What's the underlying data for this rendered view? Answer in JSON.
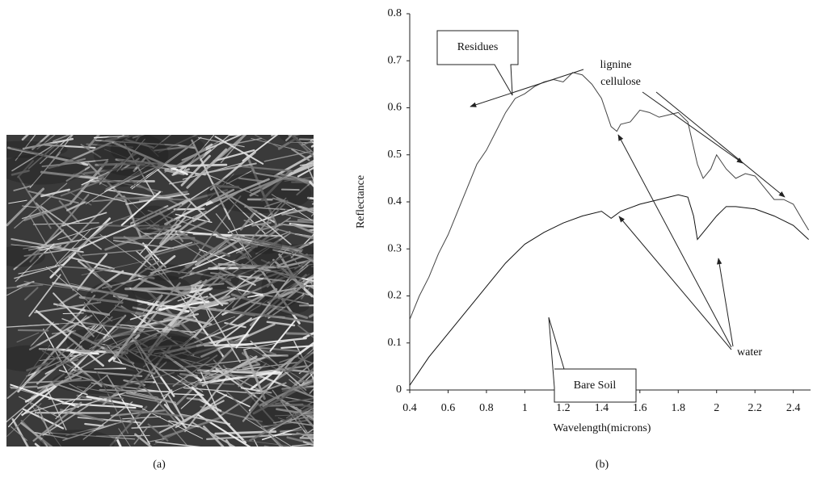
{
  "chart_data": {
    "type": "line",
    "panel_labels": [
      "(a)",
      "(b)"
    ],
    "xlabel": "Wavelength(microns)",
    "ylabel": "Reflectance",
    "xlim": [
      0.4,
      2.49
    ],
    "ylim": [
      0,
      0.8
    ],
    "xticks": [
      0.4,
      0.6,
      0.8,
      1,
      1.2,
      1.4,
      1.6,
      1.8,
      2,
      2.2,
      2.4
    ],
    "yticks": [
      0,
      0.1,
      0.2,
      0.3,
      0.4,
      0.5,
      0.6,
      0.7,
      0.8
    ],
    "grid": false,
    "annotations": [
      "lignine",
      "cellulose",
      "water"
    ],
    "series": [
      {
        "name": "Residues",
        "color": "#444444",
        "x": [
          0.4,
          0.45,
          0.5,
          0.55,
          0.6,
          0.65,
          0.7,
          0.75,
          0.8,
          0.85,
          0.9,
          0.95,
          1.0,
          1.05,
          1.1,
          1.15,
          1.2,
          1.25,
          1.3,
          1.35,
          1.4,
          1.45,
          1.48,
          1.5,
          1.55,
          1.6,
          1.65,
          1.7,
          1.75,
          1.8,
          1.85,
          1.9,
          1.93,
          1.97,
          2.0,
          2.05,
          2.1,
          2.15,
          2.2,
          2.25,
          2.3,
          2.35,
          2.4,
          2.45,
          2.48
        ],
        "values": [
          0.15,
          0.2,
          0.24,
          0.29,
          0.33,
          0.38,
          0.43,
          0.48,
          0.51,
          0.55,
          0.59,
          0.62,
          0.63,
          0.645,
          0.655,
          0.66,
          0.655,
          0.675,
          0.67,
          0.65,
          0.62,
          0.56,
          0.55,
          0.565,
          0.57,
          0.595,
          0.59,
          0.58,
          0.585,
          0.59,
          0.57,
          0.48,
          0.45,
          0.47,
          0.5,
          0.47,
          0.45,
          0.46,
          0.455,
          0.43,
          0.405,
          0.405,
          0.395,
          0.36,
          0.34
        ]
      },
      {
        "name": "Bare Soil",
        "color": "#111111",
        "x": [
          0.4,
          0.5,
          0.6,
          0.7,
          0.8,
          0.9,
          1.0,
          1.1,
          1.2,
          1.3,
          1.4,
          1.45,
          1.5,
          1.6,
          1.7,
          1.8,
          1.85,
          1.88,
          1.9,
          1.95,
          2.0,
          2.05,
          2.1,
          2.2,
          2.3,
          2.4,
          2.48
        ],
        "values": [
          0.01,
          0.07,
          0.12,
          0.17,
          0.22,
          0.27,
          0.31,
          0.335,
          0.355,
          0.37,
          0.38,
          0.365,
          0.38,
          0.395,
          0.405,
          0.415,
          0.41,
          0.37,
          0.32,
          0.345,
          0.37,
          0.39,
          0.39,
          0.385,
          0.37,
          0.35,
          0.32
        ]
      }
    ]
  }
}
